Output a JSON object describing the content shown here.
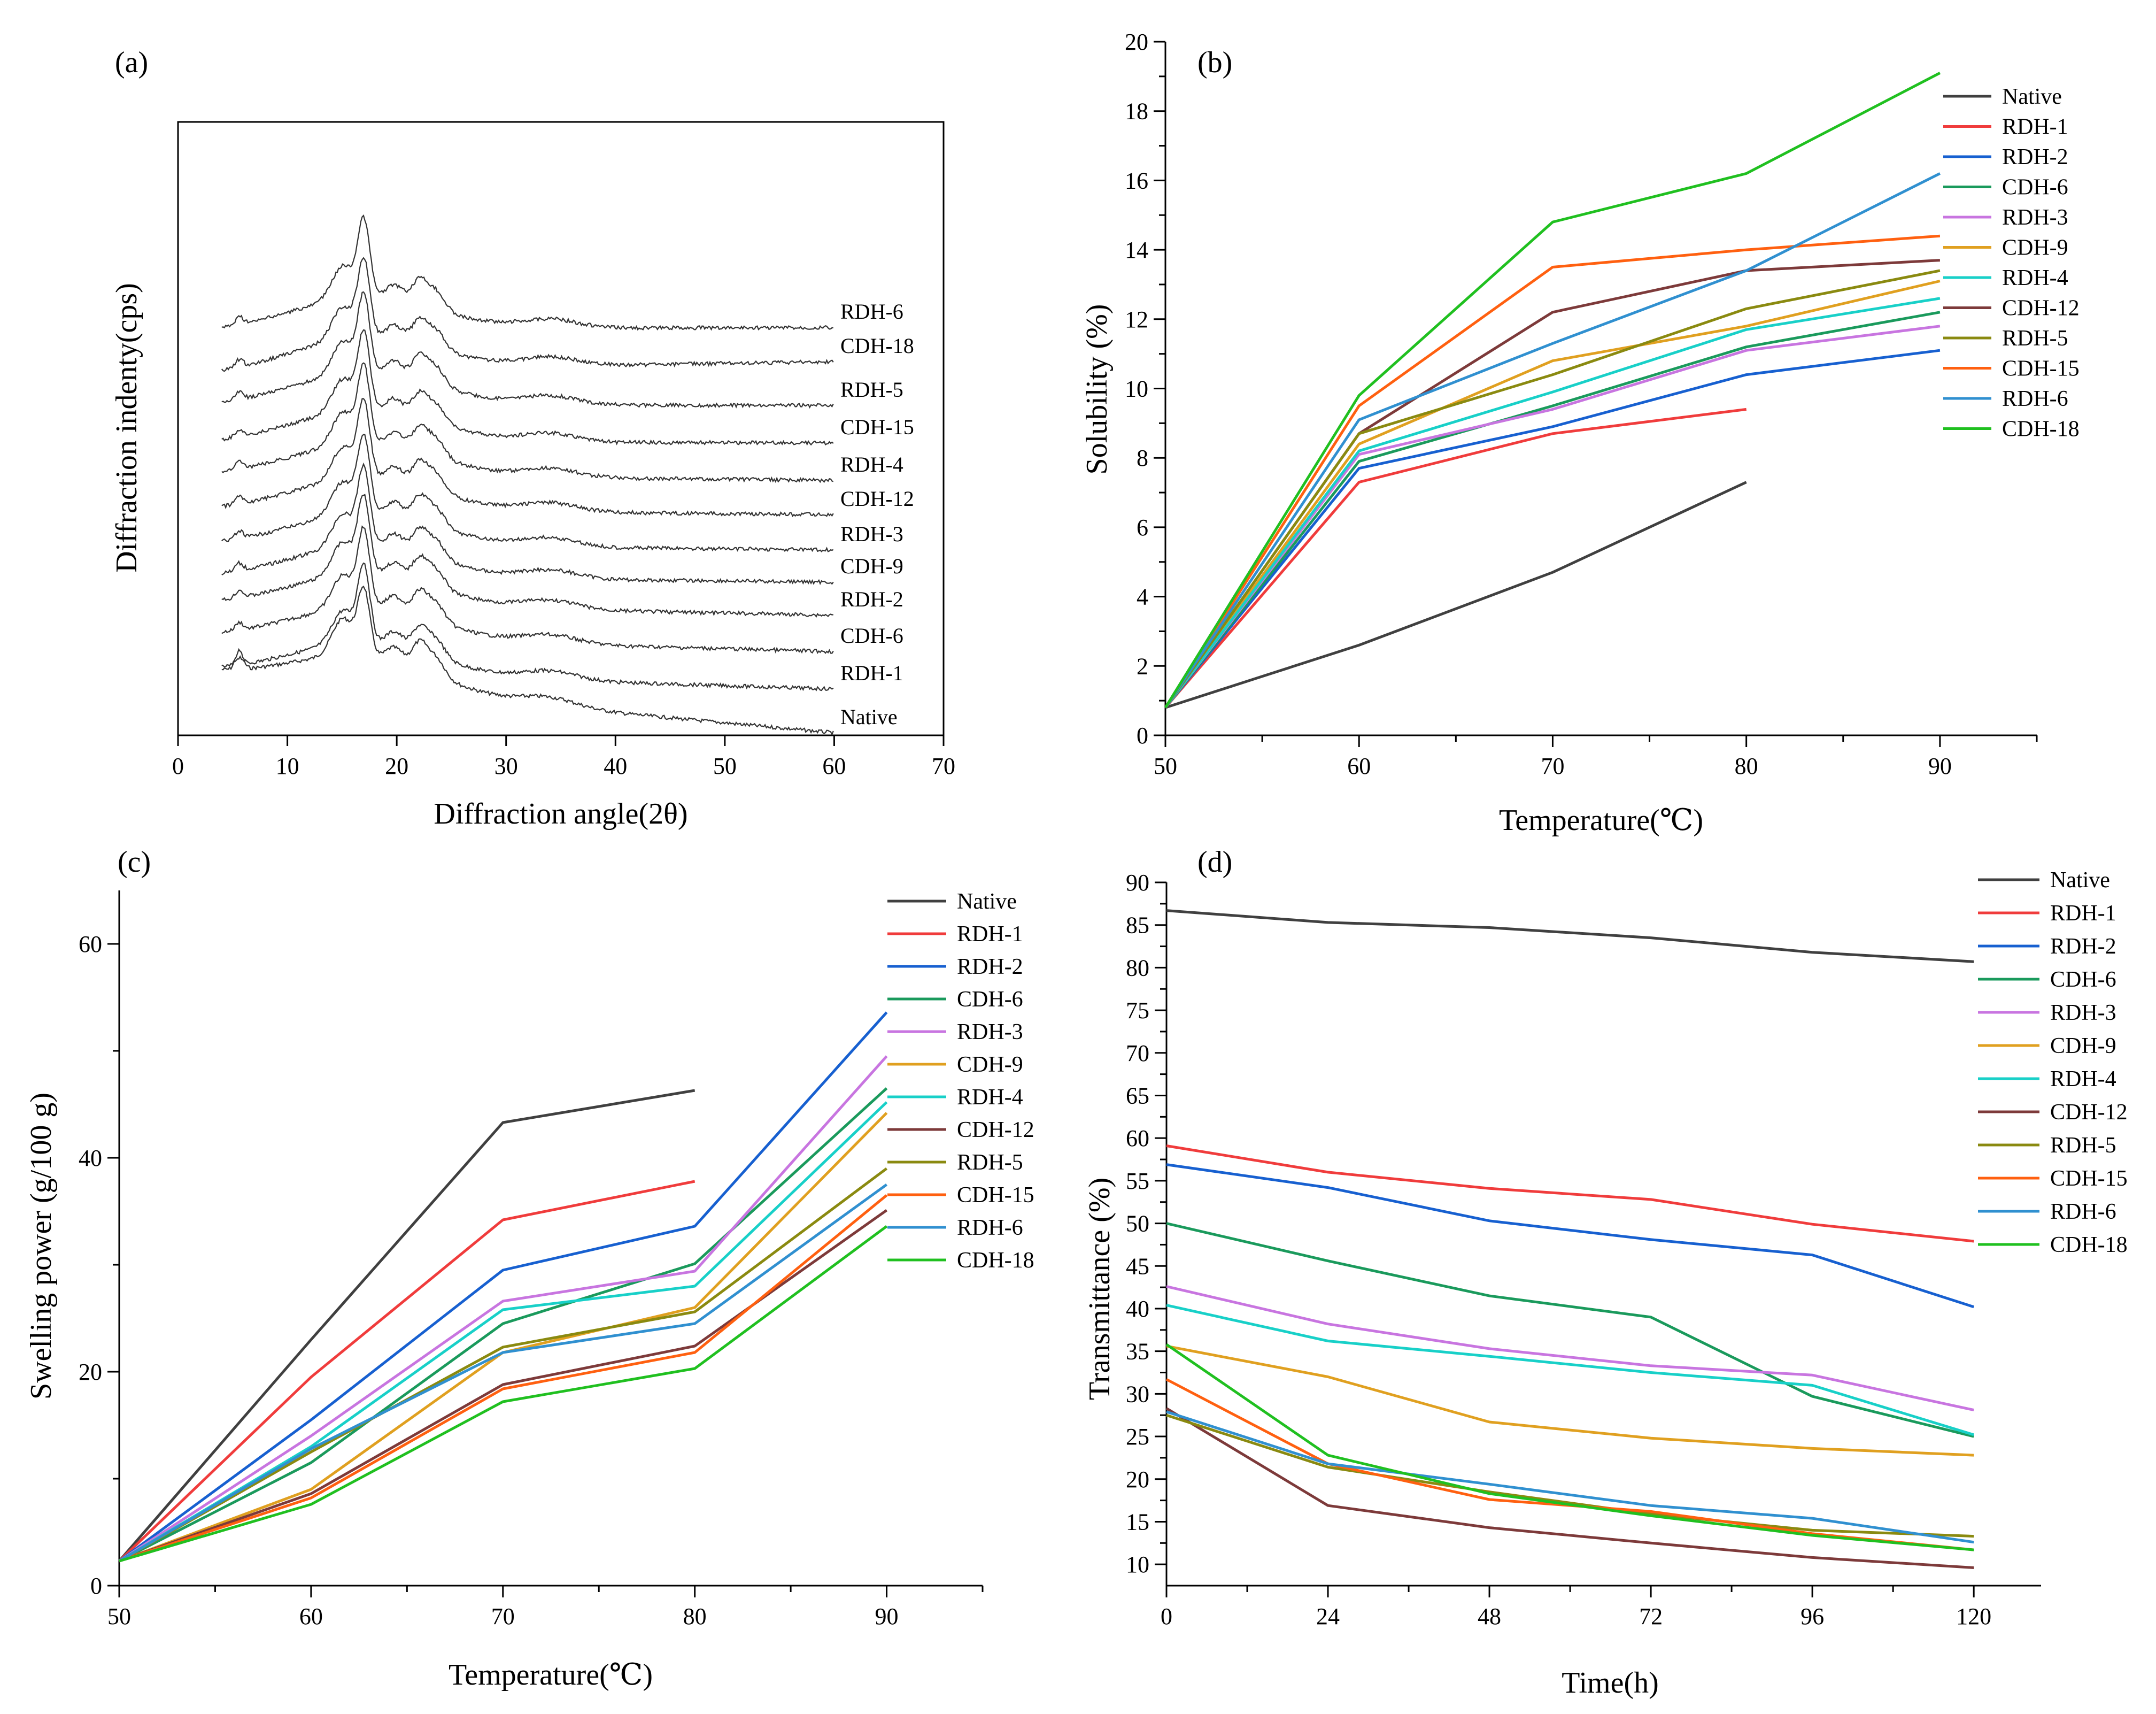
{
  "chart_data": [
    {
      "panel": "(a)",
      "type": "line",
      "title": "",
      "xlabel": "Diffraction angle(2θ)",
      "ylabel": "Diffraction indenty(cps)",
      "xlim": [
        0,
        70
      ],
      "xticks": [
        "0",
        "10",
        "20",
        "30",
        "40",
        "50",
        "60",
        "70"
      ],
      "series_labels": [
        "Native",
        "RDH-1",
        "CDH-6",
        "RDH-2",
        "CDH-9",
        "RDH-3",
        "CDH-12",
        "RDH-4",
        "CDH-15",
        "RDH-5",
        "CDH-18",
        "RDH-6"
      ],
      "x_range": [
        4,
        60
      ],
      "peaks_2theta": [
        5.6,
        15.1,
        17.0,
        19.8,
        22.1,
        23.6,
        34.0
      ]
    },
    {
      "panel": "(b)",
      "type": "line",
      "title": "",
      "xlabel": "Temperature(℃)",
      "ylabel": "Solubility (%)",
      "xlim": [
        50,
        95
      ],
      "ylim": [
        0,
        20
      ],
      "xticks": [
        "50",
        "60",
        "70",
        "80",
        "90"
      ],
      "yticks": [
        "0",
        "2",
        "4",
        "6",
        "8",
        "10",
        "12",
        "14",
        "16",
        "18",
        "20"
      ],
      "series": [
        {
          "name": "Native",
          "color": "#404040",
          "x": [
            50,
            60,
            70,
            80
          ],
          "values": [
            0.8,
            2.6,
            4.7,
            7.3
          ]
        },
        {
          "name": "RDH-1",
          "color": "#f03c3c",
          "x": [
            50,
            60,
            70,
            80
          ],
          "values": [
            0.8,
            7.3,
            8.7,
            9.4
          ]
        },
        {
          "name": "RDH-2",
          "color": "#1760d0",
          "x": [
            50,
            60,
            70,
            80,
            90
          ],
          "values": [
            0.8,
            7.7,
            8.9,
            10.4,
            11.1
          ]
        },
        {
          "name": "CDH-6",
          "color": "#1a9a5c",
          "x": [
            50,
            60,
            70,
            80,
            90
          ],
          "values": [
            0.8,
            7.9,
            9.5,
            11.2,
            12.2
          ]
        },
        {
          "name": "RDH-3",
          "color": "#c875e0",
          "x": [
            50,
            60,
            70,
            80,
            90
          ],
          "values": [
            0.8,
            8.1,
            9.4,
            11.1,
            11.8
          ]
        },
        {
          "name": "CDH-9",
          "color": "#e0a020",
          "x": [
            50,
            60,
            70,
            80,
            90
          ],
          "values": [
            0.8,
            8.4,
            10.8,
            11.8,
            13.1
          ]
        },
        {
          "name": "RDH-4",
          "color": "#18d0c8",
          "x": [
            50,
            60,
            70,
            80,
            90
          ],
          "values": [
            0.8,
            8.2,
            9.9,
            11.7,
            12.6
          ]
        },
        {
          "name": "CDH-12",
          "color": "#7d3a3a",
          "x": [
            50,
            60,
            70,
            80,
            90
          ],
          "values": [
            0.8,
            8.7,
            12.2,
            13.4,
            13.7
          ]
        },
        {
          "name": "RDH-5",
          "color": "#8a8a10",
          "x": [
            50,
            60,
            70,
            80,
            90
          ],
          "values": [
            0.8,
            8.7,
            10.4,
            12.3,
            13.4
          ]
        },
        {
          "name": "CDH-15",
          "color": "#ff6010",
          "x": [
            50,
            60,
            70,
            80,
            90
          ],
          "values": [
            0.8,
            9.5,
            13.5,
            14.0,
            14.4
          ]
        },
        {
          "name": "RDH-6",
          "color": "#3090d0",
          "x": [
            50,
            60,
            70,
            80,
            90
          ],
          "values": [
            0.8,
            9.1,
            11.3,
            13.4,
            16.2
          ]
        },
        {
          "name": "CDH-18",
          "color": "#20c020",
          "x": [
            50,
            60,
            70,
            80,
            90
          ],
          "values": [
            0.8,
            9.8,
            14.8,
            16.2,
            19.1
          ]
        }
      ]
    },
    {
      "panel": "(c)",
      "type": "line",
      "title": "",
      "xlabel": "Temperature(℃)",
      "ylabel": "Swelling power (g/100 g)",
      "xlim": [
        50,
        95
      ],
      "ylim": [
        0,
        65
      ],
      "xticks": [
        "50",
        "60",
        "70",
        "80",
        "90"
      ],
      "yticks": [
        "0",
        "20",
        "40",
        "60"
      ],
      "series": [
        {
          "name": "Native",
          "color": "#404040",
          "x": [
            50,
            60,
            70,
            80
          ],
          "values": [
            2.3,
            23.0,
            43.3,
            46.3
          ]
        },
        {
          "name": "RDH-1",
          "color": "#f03c3c",
          "x": [
            50,
            60,
            70,
            80
          ],
          "values": [
            2.3,
            19.5,
            34.2,
            37.8
          ]
        },
        {
          "name": "RDH-2",
          "color": "#1760d0",
          "x": [
            50,
            60,
            70,
            80,
            90
          ],
          "values": [
            2.3,
            15.5,
            29.5,
            33.6,
            53.6
          ]
        },
        {
          "name": "CDH-6",
          "color": "#1a9a5c",
          "x": [
            50,
            60,
            70,
            80,
            90
          ],
          "values": [
            2.3,
            11.5,
            24.5,
            30.1,
            46.5
          ]
        },
        {
          "name": "RDH-3",
          "color": "#c875e0",
          "x": [
            50,
            60,
            70,
            80,
            90
          ],
          "values": [
            2.3,
            14.0,
            26.6,
            29.4,
            49.5
          ]
        },
        {
          "name": "CDH-9",
          "color": "#e0a020",
          "x": [
            50,
            60,
            70,
            80,
            90
          ],
          "values": [
            2.3,
            9.0,
            21.8,
            26.0,
            44.2
          ]
        },
        {
          "name": "RDH-4",
          "color": "#18d0c8",
          "x": [
            50,
            60,
            70,
            80,
            90
          ],
          "values": [
            2.3,
            13.0,
            25.8,
            28.0,
            45.2
          ]
        },
        {
          "name": "CDH-12",
          "color": "#7d3a3a",
          "x": [
            50,
            60,
            70,
            80,
            90
          ],
          "values": [
            2.3,
            8.6,
            18.8,
            22.4,
            35.1
          ]
        },
        {
          "name": "RDH-5",
          "color": "#8a8a10",
          "x": [
            50,
            60,
            70,
            80,
            90
          ],
          "values": [
            2.3,
            12.5,
            22.3,
            25.6,
            39.0
          ]
        },
        {
          "name": "CDH-15",
          "color": "#ff6010",
          "x": [
            50,
            60,
            70,
            80,
            90
          ],
          "values": [
            2.3,
            8.2,
            18.4,
            21.8,
            36.5
          ]
        },
        {
          "name": "RDH-6",
          "color": "#3090d0",
          "x": [
            50,
            60,
            70,
            80,
            90
          ],
          "values": [
            2.3,
            12.8,
            21.8,
            24.5,
            37.5
          ]
        },
        {
          "name": "CDH-18",
          "color": "#20c020",
          "x": [
            50,
            60,
            70,
            80,
            90
          ],
          "values": [
            2.3,
            7.6,
            17.2,
            20.3,
            33.6
          ]
        }
      ]
    },
    {
      "panel": "(d)",
      "type": "line",
      "title": "",
      "xlabel": "Time(h)",
      "ylabel": "Transmittance (%)",
      "xlim": [
        0,
        130
      ],
      "ylim": [
        7.5,
        90
      ],
      "xticks": [
        "0",
        "24",
        "48",
        "72",
        "96",
        "120"
      ],
      "yticks": [
        "10",
        "15",
        "20",
        "25",
        "30",
        "35",
        "40",
        "45",
        "50",
        "55",
        "60",
        "65",
        "70",
        "75",
        "80",
        "85",
        "90"
      ],
      "series": [
        {
          "name": "Native",
          "color": "#404040",
          "x": [
            0,
            24,
            48,
            72,
            96,
            120
          ],
          "values": [
            86.7,
            85.3,
            84.7,
            83.5,
            81.8,
            80.7
          ]
        },
        {
          "name": "RDH-1",
          "color": "#f03c3c",
          "x": [
            0,
            24,
            48,
            72,
            96,
            120
          ],
          "values": [
            59.1,
            56.0,
            54.1,
            52.8,
            49.9,
            47.9
          ]
        },
        {
          "name": "RDH-2",
          "color": "#1760d0",
          "x": [
            0,
            24,
            48,
            72,
            96,
            120
          ],
          "values": [
            56.9,
            54.2,
            50.3,
            48.1,
            46.3,
            40.2
          ]
        },
        {
          "name": "CDH-6",
          "color": "#1a9a5c",
          "x": [
            0,
            24,
            48,
            72,
            96,
            120
          ],
          "values": [
            50.0,
            45.6,
            41.5,
            39.0,
            29.7,
            25.0
          ]
        },
        {
          "name": "RDH-3",
          "color": "#c875e0",
          "x": [
            0,
            24,
            48,
            72,
            96,
            120
          ],
          "values": [
            42.6,
            38.2,
            35.3,
            33.3,
            32.2,
            28.1
          ]
        },
        {
          "name": "CDH-9",
          "color": "#e0a020",
          "x": [
            0,
            24,
            48,
            72,
            96,
            120
          ],
          "values": [
            35.6,
            32.0,
            26.7,
            24.8,
            23.6,
            22.8
          ]
        },
        {
          "name": "RDH-4",
          "color": "#18d0c8",
          "x": [
            0,
            24,
            48,
            72,
            96,
            120
          ],
          "values": [
            40.4,
            36.2,
            34.4,
            32.5,
            31.0,
            25.2
          ]
        },
        {
          "name": "CDH-12",
          "color": "#7d3a3a",
          "x": [
            0,
            24,
            48,
            72,
            96,
            120
          ],
          "values": [
            28.3,
            16.9,
            14.3,
            12.5,
            10.8,
            9.6
          ]
        },
        {
          "name": "RDH-5",
          "color": "#8a8a10",
          "x": [
            0,
            24,
            48,
            72,
            96,
            120
          ],
          "values": [
            27.5,
            21.4,
            18.5,
            15.9,
            14.0,
            13.3
          ]
        },
        {
          "name": "CDH-15",
          "color": "#ff6010",
          "x": [
            0,
            24,
            48,
            72,
            96,
            120
          ],
          "values": [
            31.7,
            21.8,
            17.6,
            16.2,
            13.6,
            11.7
          ]
        },
        {
          "name": "RDH-6",
          "color": "#3090d0",
          "x": [
            0,
            24,
            48,
            72,
            96,
            120
          ],
          "values": [
            27.9,
            21.8,
            19.4,
            16.9,
            15.4,
            12.6
          ]
        },
        {
          "name": "CDH-18",
          "color": "#20c020",
          "x": [
            0,
            24,
            48,
            72,
            96,
            120
          ],
          "values": [
            35.8,
            22.8,
            18.3,
            15.7,
            13.4,
            11.7
          ]
        }
      ]
    }
  ]
}
